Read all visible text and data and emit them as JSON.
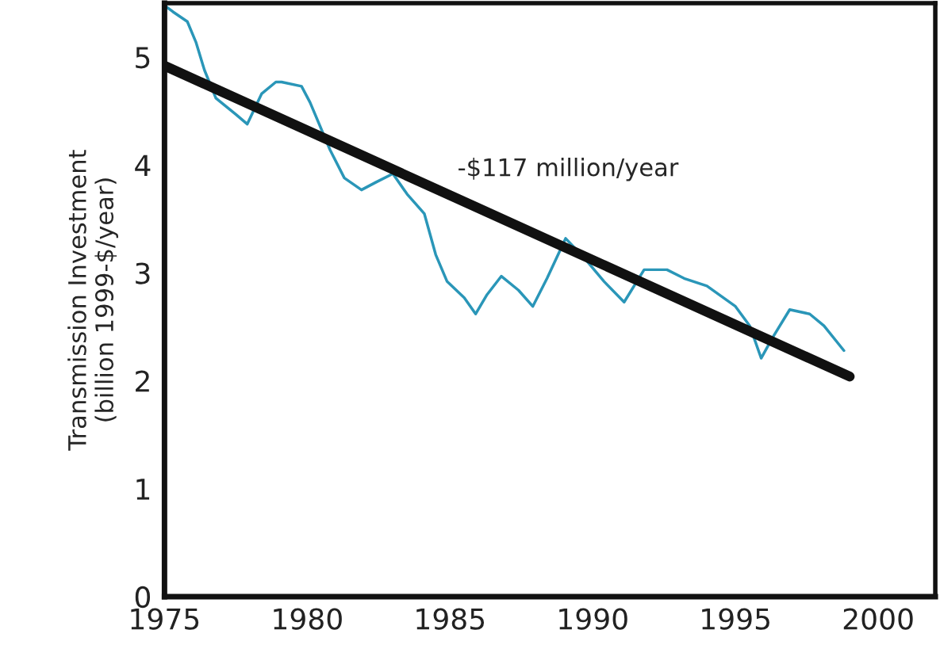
{
  "chart_data": {
    "type": "line",
    "ylabel": "Transmission Investment\n(billion 1999-$/year)",
    "series": [
      {
        "color": "#2a96b8",
        "x": [
          1975,
          1975.3,
          1975.8,
          1976.1,
          1976.4,
          1976.8,
          1977.5,
          1977.9,
          1978.4,
          1978.9,
          1979.1,
          1979.8,
          1980.1,
          1980.8,
          1981.3,
          1981.9,
          1982.4,
          1983,
          1983.5,
          1984.1,
          1984.5,
          1984.9,
          1985.5,
          1985.9,
          1986.3,
          1986.8,
          1987.4,
          1987.9,
          1988.4,
          1989.05,
          1989.7,
          1990.4,
          1991.1,
          1991.8,
          1992.6,
          1993.2,
          1994,
          1995,
          1995.5,
          1995.9,
          1996.3,
          1996.9,
          1997.6,
          1998.1,
          1998.8
        ],
        "values": [
          5.48,
          5.42,
          5.33,
          5.14,
          4.88,
          4.62,
          4.47,
          4.38,
          4.66,
          4.77,
          4.77,
          4.73,
          4.58,
          4.14,
          3.88,
          3.77,
          3.84,
          3.92,
          3.73,
          3.55,
          3.17,
          2.92,
          2.77,
          2.62,
          2.8,
          2.97,
          2.84,
          2.69,
          2.95,
          3.32,
          3.14,
          2.92,
          2.73,
          3.03,
          3.03,
          2.95,
          2.88,
          2.69,
          2.51,
          2.21,
          2.4,
          2.66,
          2.62,
          2.51,
          2.28
        ]
      },
      {
        "color": "#111111",
        "x": [
          1975,
          1999
        ],
        "values": [
          4.92,
          2.04
        ]
      }
    ],
    "annotations": [
      "-$117 million/year"
    ],
    "xlim": [
      1975,
      2002
    ],
    "xticks": [
      1975,
      1980,
      1985,
      1990,
      1995,
      2000
    ],
    "ylim": [
      0,
      5.5
    ],
    "yticks": [
      0,
      1,
      2,
      3,
      4,
      5
    ],
    "grid": false,
    "legend": false
  }
}
